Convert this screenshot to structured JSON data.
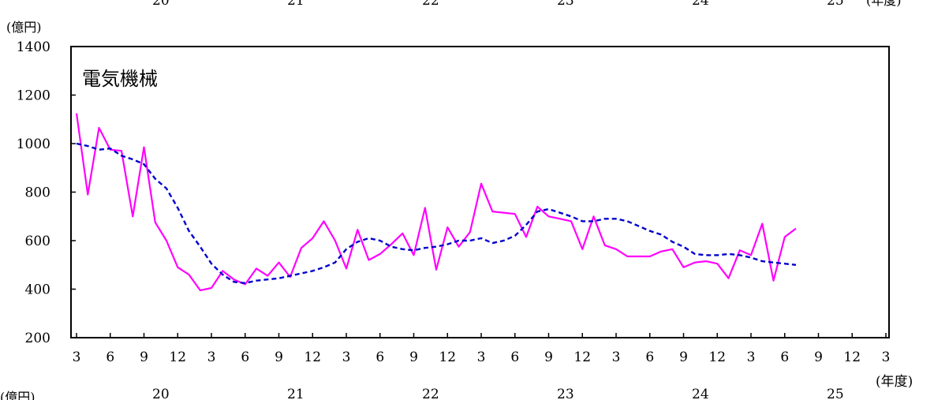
{
  "page": {
    "top_ylabel": "(億円)",
    "top_years": [
      "20",
      "21",
      "22",
      "23",
      "24",
      "25"
    ],
    "top_xunit": "(年度)",
    "bottom_ylabel": "(億円)"
  },
  "chart_data": {
    "type": "line",
    "inner_title": "電気機械",
    "ylabel": "(億円)",
    "xlabel": "(年度)",
    "ylim": [
      200,
      1400
    ],
    "yticks": [
      200,
      400,
      600,
      800,
      1000,
      1200,
      1400
    ],
    "month_ticks": [
      "3",
      "6",
      "9",
      "12",
      "3",
      "6",
      "9",
      "12",
      "3",
      "6",
      "9",
      "12",
      "3",
      "6",
      "9",
      "12",
      "3",
      "6",
      "9",
      "12",
      "3",
      "6",
      "9",
      "12",
      "3"
    ],
    "fiscal_years": [
      "20",
      "21",
      "22",
      "23",
      "24",
      "25"
    ],
    "colors": {
      "series1": "#ff00ff",
      "series2": "#0000cc",
      "axis": "#000000"
    },
    "grid": false,
    "series": [
      {
        "style": "solid",
        "values": [
          1125,
          790,
          1065,
          975,
          970,
          700,
          985,
          675,
          600,
          490,
          460,
          395,
          405,
          475,
          440,
          420,
          485,
          455,
          510,
          450,
          570,
          610,
          680,
          600,
          485,
          645,
          520,
          545,
          585,
          630,
          540,
          735,
          480,
          655,
          575,
          635,
          835,
          720,
          715,
          710,
          615,
          740,
          700,
          690,
          680,
          565,
          700,
          580,
          565,
          535,
          535,
          535,
          555,
          565,
          490,
          510,
          515,
          505,
          445,
          560,
          540,
          670,
          435,
          615,
          650
        ]
      },
      {
        "style": "dashed",
        "values": [
          1000,
          990,
          975,
          980,
          950,
          935,
          915,
          855,
          815,
          735,
          640,
          575,
          505,
          460,
          430,
          425,
          435,
          440,
          445,
          455,
          465,
          475,
          490,
          510,
          565,
          595,
          610,
          600,
          575,
          565,
          560,
          570,
          575,
          585,
          600,
          600,
          610,
          590,
          600,
          620,
          665,
          720,
          730,
          715,
          700,
          680,
          680,
          690,
          690,
          680,
          660,
          640,
          625,
          595,
          575,
          545,
          540,
          540,
          545,
          540,
          530,
          515,
          510,
          505,
          500
        ]
      }
    ]
  }
}
